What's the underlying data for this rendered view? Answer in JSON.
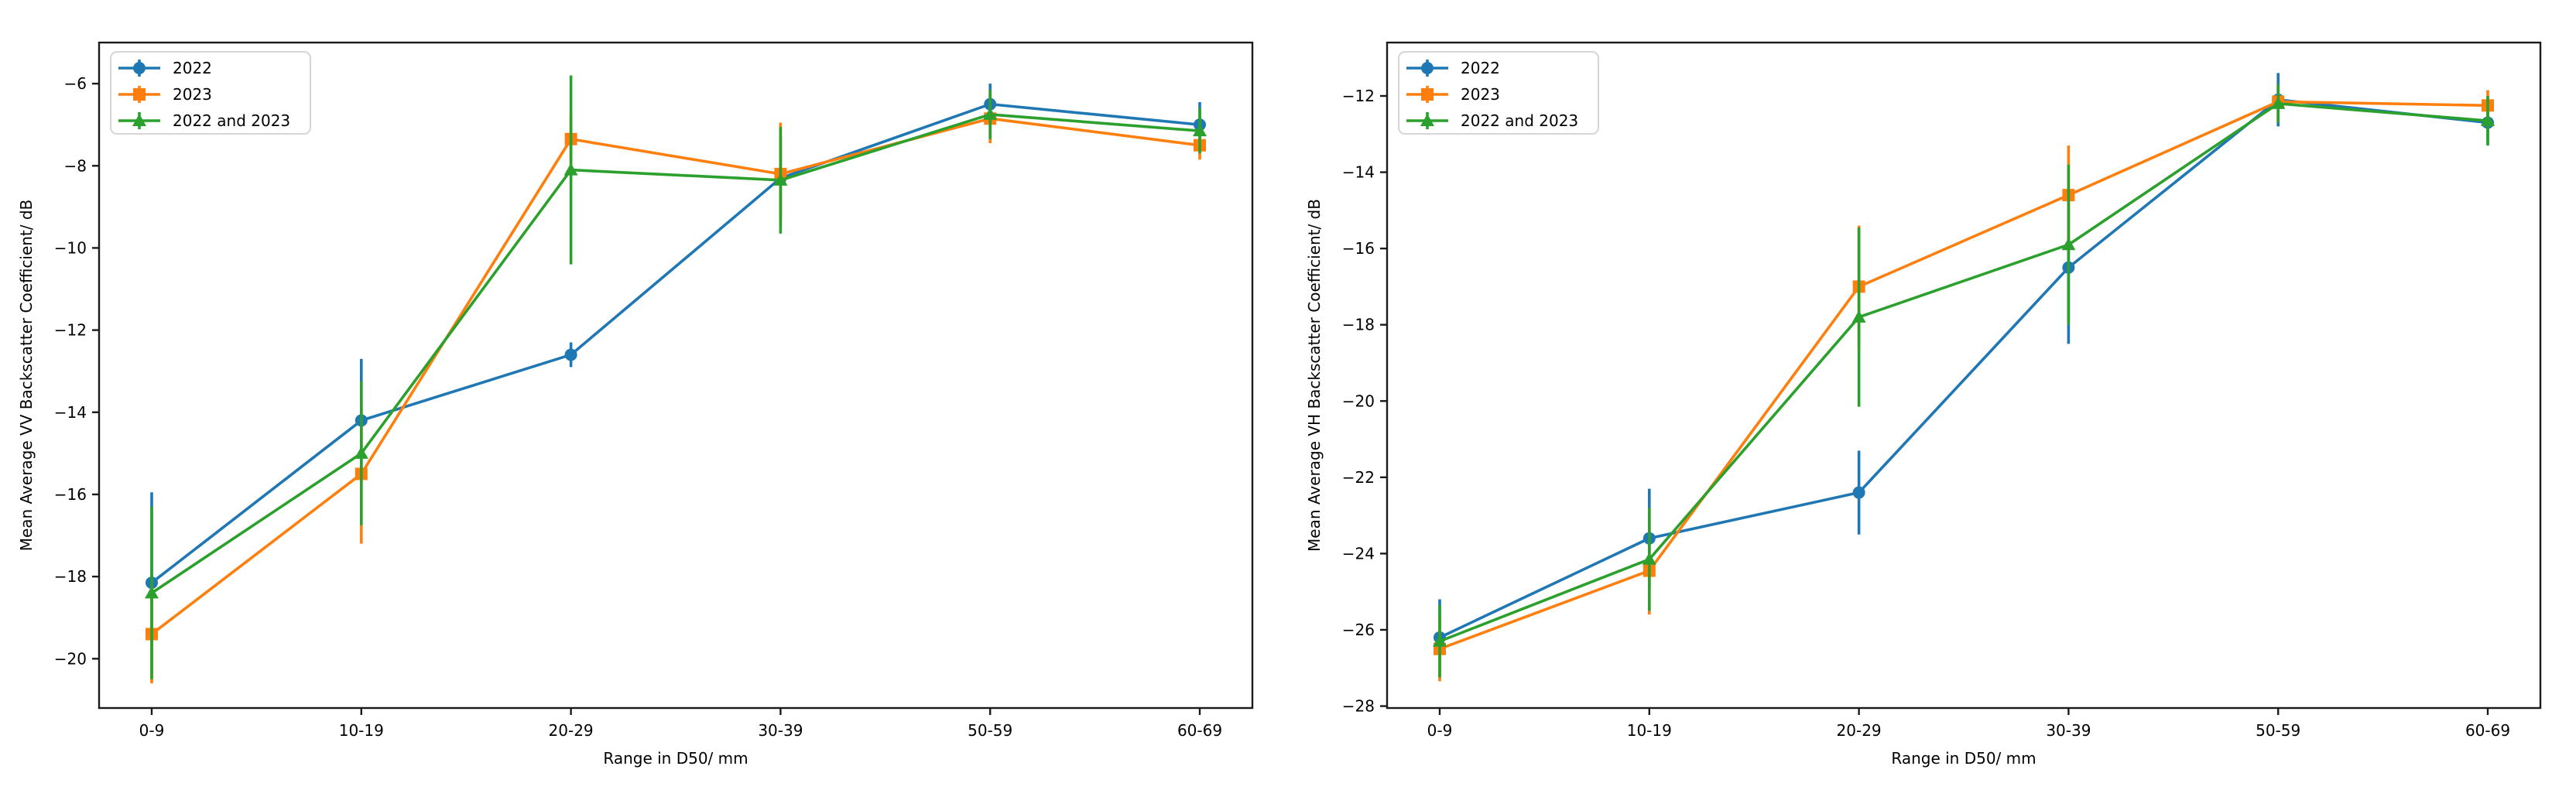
{
  "figure": {
    "background": "#ffffff",
    "axis_color": "#1a1a1a",
    "text_color": "#000000",
    "legend_border_color": "#d5d5d5",
    "legend_background": "#ffffff"
  },
  "legend": {
    "items": [
      "2022",
      "2023",
      "2022 and 2023"
    ],
    "position": "upper left"
  },
  "chart_data": [
    {
      "type": "line",
      "id": "vv",
      "title": "",
      "xlabel": "Range in D50/ mm",
      "ylabel": "Mean Average VV Backscatter Coefficient/ dB",
      "categories": [
        "0-9",
        "10-19",
        "20-29",
        "30-39",
        "50-59",
        "60-69"
      ],
      "ylim": [
        -21.2,
        -5.0
      ],
      "yticks": [
        -6,
        -8,
        -10,
        -12,
        -14,
        -16,
        -18,
        -20
      ],
      "grid": false,
      "legend_position": "upper left",
      "series": [
        {
          "name": "2022",
          "color": "#1f77b4",
          "marker": "circle",
          "values": [
            -18.15,
            -14.2,
            -12.6,
            -8.3,
            -6.5,
            -7.0
          ],
          "errors": [
            2.2,
            1.5,
            0.3,
            1.0,
            0.5,
            0.55
          ]
        },
        {
          "name": "2023",
          "color": "#ff7f0e",
          "marker": "square",
          "values": [
            -19.4,
            -15.5,
            -7.35,
            -8.2,
            -6.85,
            -7.5
          ],
          "errors": [
            1.2,
            1.7,
            0.6,
            1.25,
            0.6,
            0.35
          ]
        },
        {
          "name": "2022 and 2023",
          "color": "#2ca02c",
          "marker": "triangle",
          "values": [
            -18.4,
            -15.0,
            -8.1,
            -8.35,
            -6.75,
            -7.15
          ],
          "errors": [
            2.1,
            1.75,
            2.3,
            1.3,
            0.6,
            0.55
          ]
        }
      ]
    },
    {
      "type": "line",
      "id": "vh",
      "title": "",
      "xlabel": "Range in D50/ mm",
      "ylabel": "Mean Average VH Backscatter Coefficient/ dB",
      "categories": [
        "0-9",
        "10-19",
        "20-29",
        "30-39",
        "50-59",
        "60-69"
      ],
      "ylim": [
        -28.05,
        -10.6
      ],
      "yticks": [
        -12,
        -14,
        -16,
        -18,
        -20,
        -22,
        -24,
        -26,
        -28
      ],
      "grid": false,
      "legend_position": "upper left",
      "series": [
        {
          "name": "2022",
          "color": "#1f77b4",
          "marker": "circle",
          "values": [
            -26.2,
            -23.6,
            -22.4,
            -16.5,
            -12.1,
            -12.7
          ],
          "errors": [
            1.0,
            1.3,
            1.1,
            2.0,
            0.7,
            0.55
          ]
        },
        {
          "name": "2023",
          "color": "#ff7f0e",
          "marker": "square",
          "values": [
            -26.5,
            -24.45,
            -17.0,
            -14.6,
            -12.15,
            -12.25
          ],
          "errors": [
            0.85,
            1.15,
            1.6,
            1.3,
            0.45,
            0.4
          ]
        },
        {
          "name": "2022 and 2023",
          "color": "#2ca02c",
          "marker": "triangle",
          "values": [
            -26.3,
            -24.15,
            -17.8,
            -15.9,
            -12.2,
            -12.65
          ],
          "errors": [
            0.95,
            1.35,
            2.35,
            2.1,
            0.5,
            0.65
          ]
        }
      ]
    }
  ]
}
